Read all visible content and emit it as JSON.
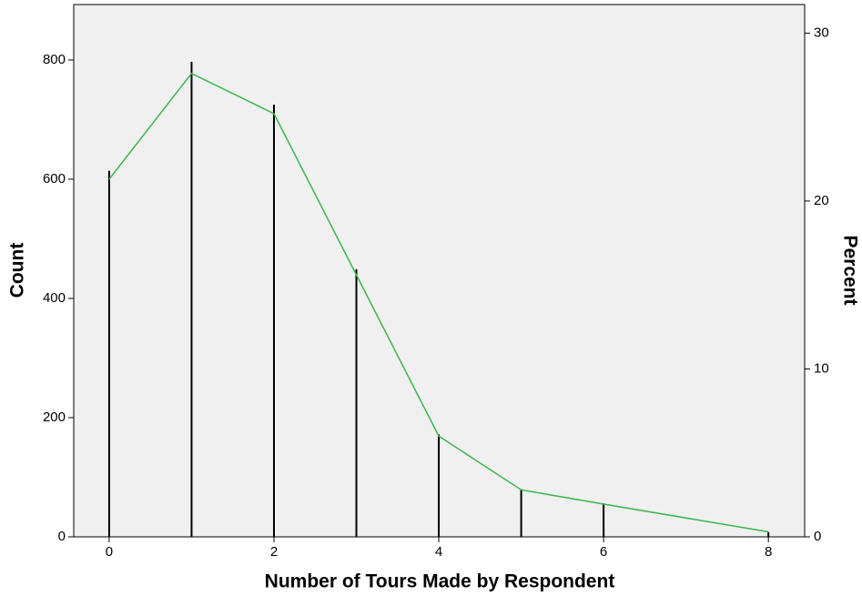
{
  "chart_data": {
    "type": "spike-line",
    "x_label": "Number of Tours Made by Respondent",
    "y_label": "Count",
    "y2_label": "Percent",
    "x": [
      0,
      1,
      2,
      3,
      4,
      5,
      6,
      8
    ],
    "series": [
      {
        "type": "spike",
        "color": "#000000",
        "values": [
          614,
          797,
          725,
          449,
          172,
          80,
          56,
          8
        ]
      },
      {
        "type": "line",
        "axis": "y2",
        "color": "#3cb44b",
        "values": [
          21.3,
          27.6,
          25.2,
          15.6,
          6.0,
          2.8,
          1.95,
          0.3
        ]
      }
    ],
    "xlim": [
      -0.43,
      8.44
    ],
    "xticks": [
      0,
      2,
      4,
      6,
      8
    ],
    "ylim": [
      0,
      893
    ],
    "yticks": [
      0,
      200,
      400,
      600,
      800
    ],
    "y2lim": [
      0,
      31.7
    ],
    "y2ticks": [
      0,
      10,
      20,
      30
    ],
    "background": "#f0f0f0"
  }
}
